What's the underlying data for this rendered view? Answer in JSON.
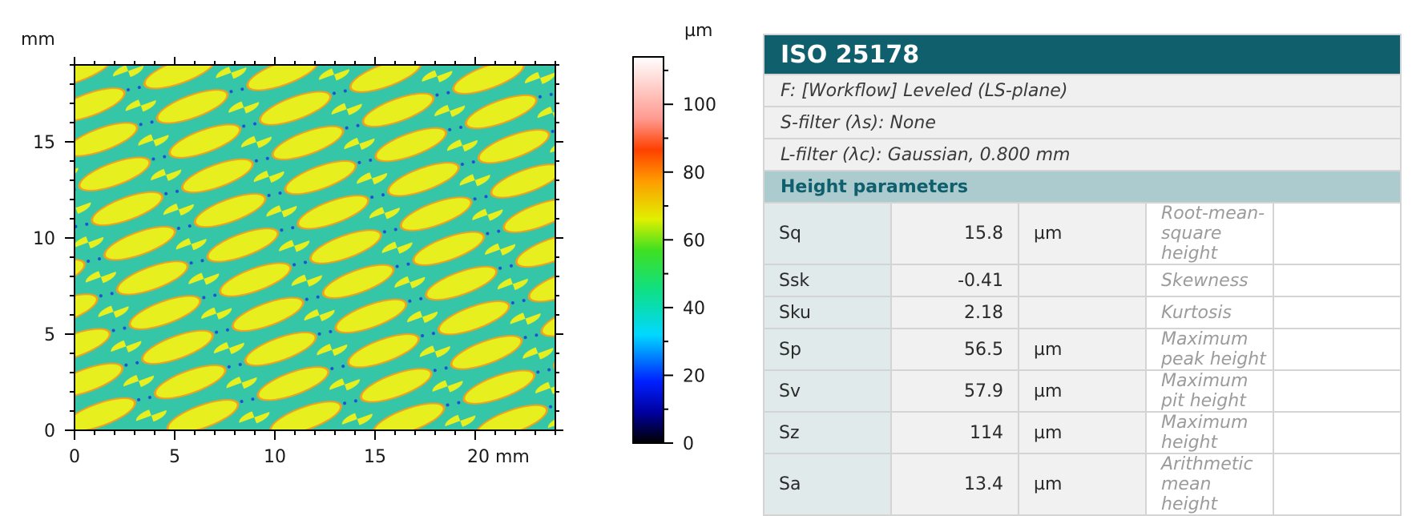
{
  "surface_map": {
    "y_unit": "mm",
    "x_ticks": [
      "0",
      "5",
      "10",
      "15",
      "20 mm"
    ],
    "y_ticks": [
      "0",
      "5",
      "10",
      "15"
    ]
  },
  "colorbar": {
    "unit": "µm",
    "ticks": [
      "0",
      "20",
      "40",
      "60",
      "80",
      "100"
    ]
  },
  "table": {
    "title": "ISO 25178",
    "info": [
      "F: [Workflow] Leveled (LS-plane)",
      "S-filter (λs): None",
      "L-filter (λc): Gaussian, 0.800 mm"
    ],
    "section": "Height parameters",
    "rows": [
      {
        "symbol": "Sq",
        "value": "15.8",
        "unit": "µm",
        "description": "Root-mean-square height"
      },
      {
        "symbol": "Ssk",
        "value": "-0.41",
        "unit": "",
        "description": "Skewness"
      },
      {
        "symbol": "Sku",
        "value": "2.18",
        "unit": "",
        "description": "Kurtosis"
      },
      {
        "symbol": "Sp",
        "value": "56.5",
        "unit": "µm",
        "description": "Maximum peak height"
      },
      {
        "symbol": "Sv",
        "value": "57.9",
        "unit": "µm",
        "description": "Maximum pit height"
      },
      {
        "symbol": "Sz",
        "value": "114",
        "unit": "µm",
        "description": "Maximum height"
      },
      {
        "symbol": "Sa",
        "value": "13.4",
        "unit": "µm",
        "description": "Arithmetic mean height"
      }
    ]
  },
  "chart_data": {
    "type": "heatmap",
    "xlim": [
      0,
      24
    ],
    "ylim": [
      0,
      19
    ],
    "x_ticks": [
      0,
      5,
      10,
      15,
      20
    ],
    "y_ticks": [
      0,
      5,
      10,
      15
    ],
    "colorbar_range": [
      0,
      114
    ],
    "colorbar_ticks": [
      0,
      20,
      40,
      60,
      80,
      100
    ],
    "colors": {
      "plateau": "#e8ef1e",
      "valley": "#35c6a8",
      "rim": "#f0a020",
      "pit": "#2050d0"
    }
  }
}
